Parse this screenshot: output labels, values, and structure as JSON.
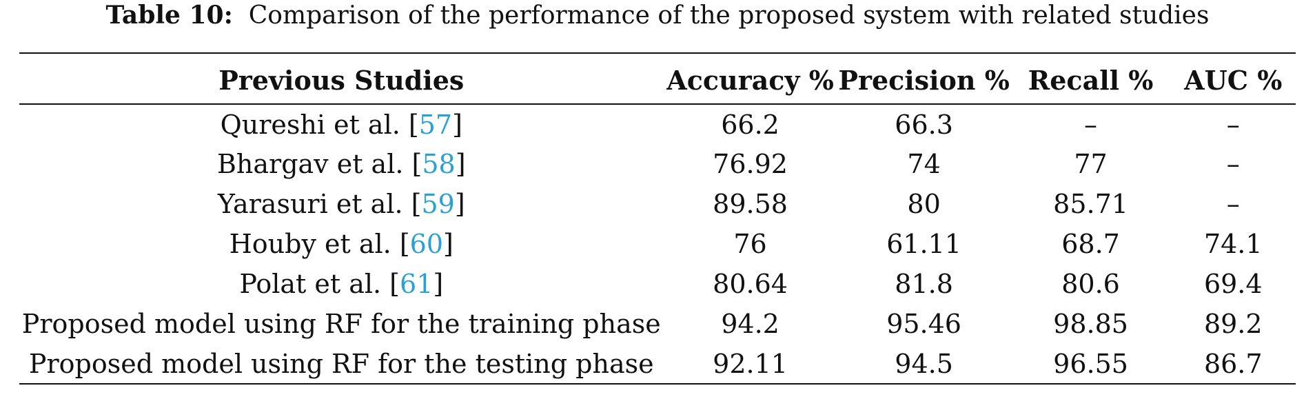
{
  "caption": {
    "label": "Table 10:",
    "text": "Comparison of the performance of the proposed system with related studies"
  },
  "table": {
    "headers": [
      "Previous Studies",
      "Accuracy %",
      "Precision %",
      "Recall %",
      "AUC %"
    ],
    "rows": [
      {
        "study": "Qureshi et al. [",
        "ref": "57",
        "close": "]",
        "accuracy": "66.2",
        "precision": "66.3",
        "recall": "–",
        "auc": "–"
      },
      {
        "study": "Bhargav et al. [",
        "ref": "58",
        "close": "]",
        "accuracy": "76.92",
        "precision": "74",
        "recall": "77",
        "auc": "–"
      },
      {
        "study": "Yarasuri et al. [",
        "ref": "59",
        "close": "]",
        "accuracy": "89.58",
        "precision": "80",
        "recall": "85.71",
        "auc": "–"
      },
      {
        "study": "Houby et al. [",
        "ref": "60",
        "close": "]",
        "accuracy": "76",
        "precision": "61.11",
        "recall": "68.7",
        "auc": "74.1"
      },
      {
        "study": "Polat et al. [",
        "ref": "61",
        "close": "]",
        "accuracy": "80.64",
        "precision": "81.8",
        "recall": "80.6",
        "auc": "69.4"
      },
      {
        "study": "Proposed model using RF for the training phase",
        "ref": "",
        "close": "",
        "accuracy": "94.2",
        "precision": "95.46",
        "recall": "98.85",
        "auc": "89.2"
      },
      {
        "study": "Proposed model using RF for the testing phase",
        "ref": "",
        "close": "",
        "accuracy": "92.11",
        "precision": "94.5",
        "recall": "96.55",
        "auc": "86.7"
      }
    ]
  },
  "colors": {
    "citation": "#2aa1d3",
    "text": "#111111",
    "rules": "#111111"
  }
}
